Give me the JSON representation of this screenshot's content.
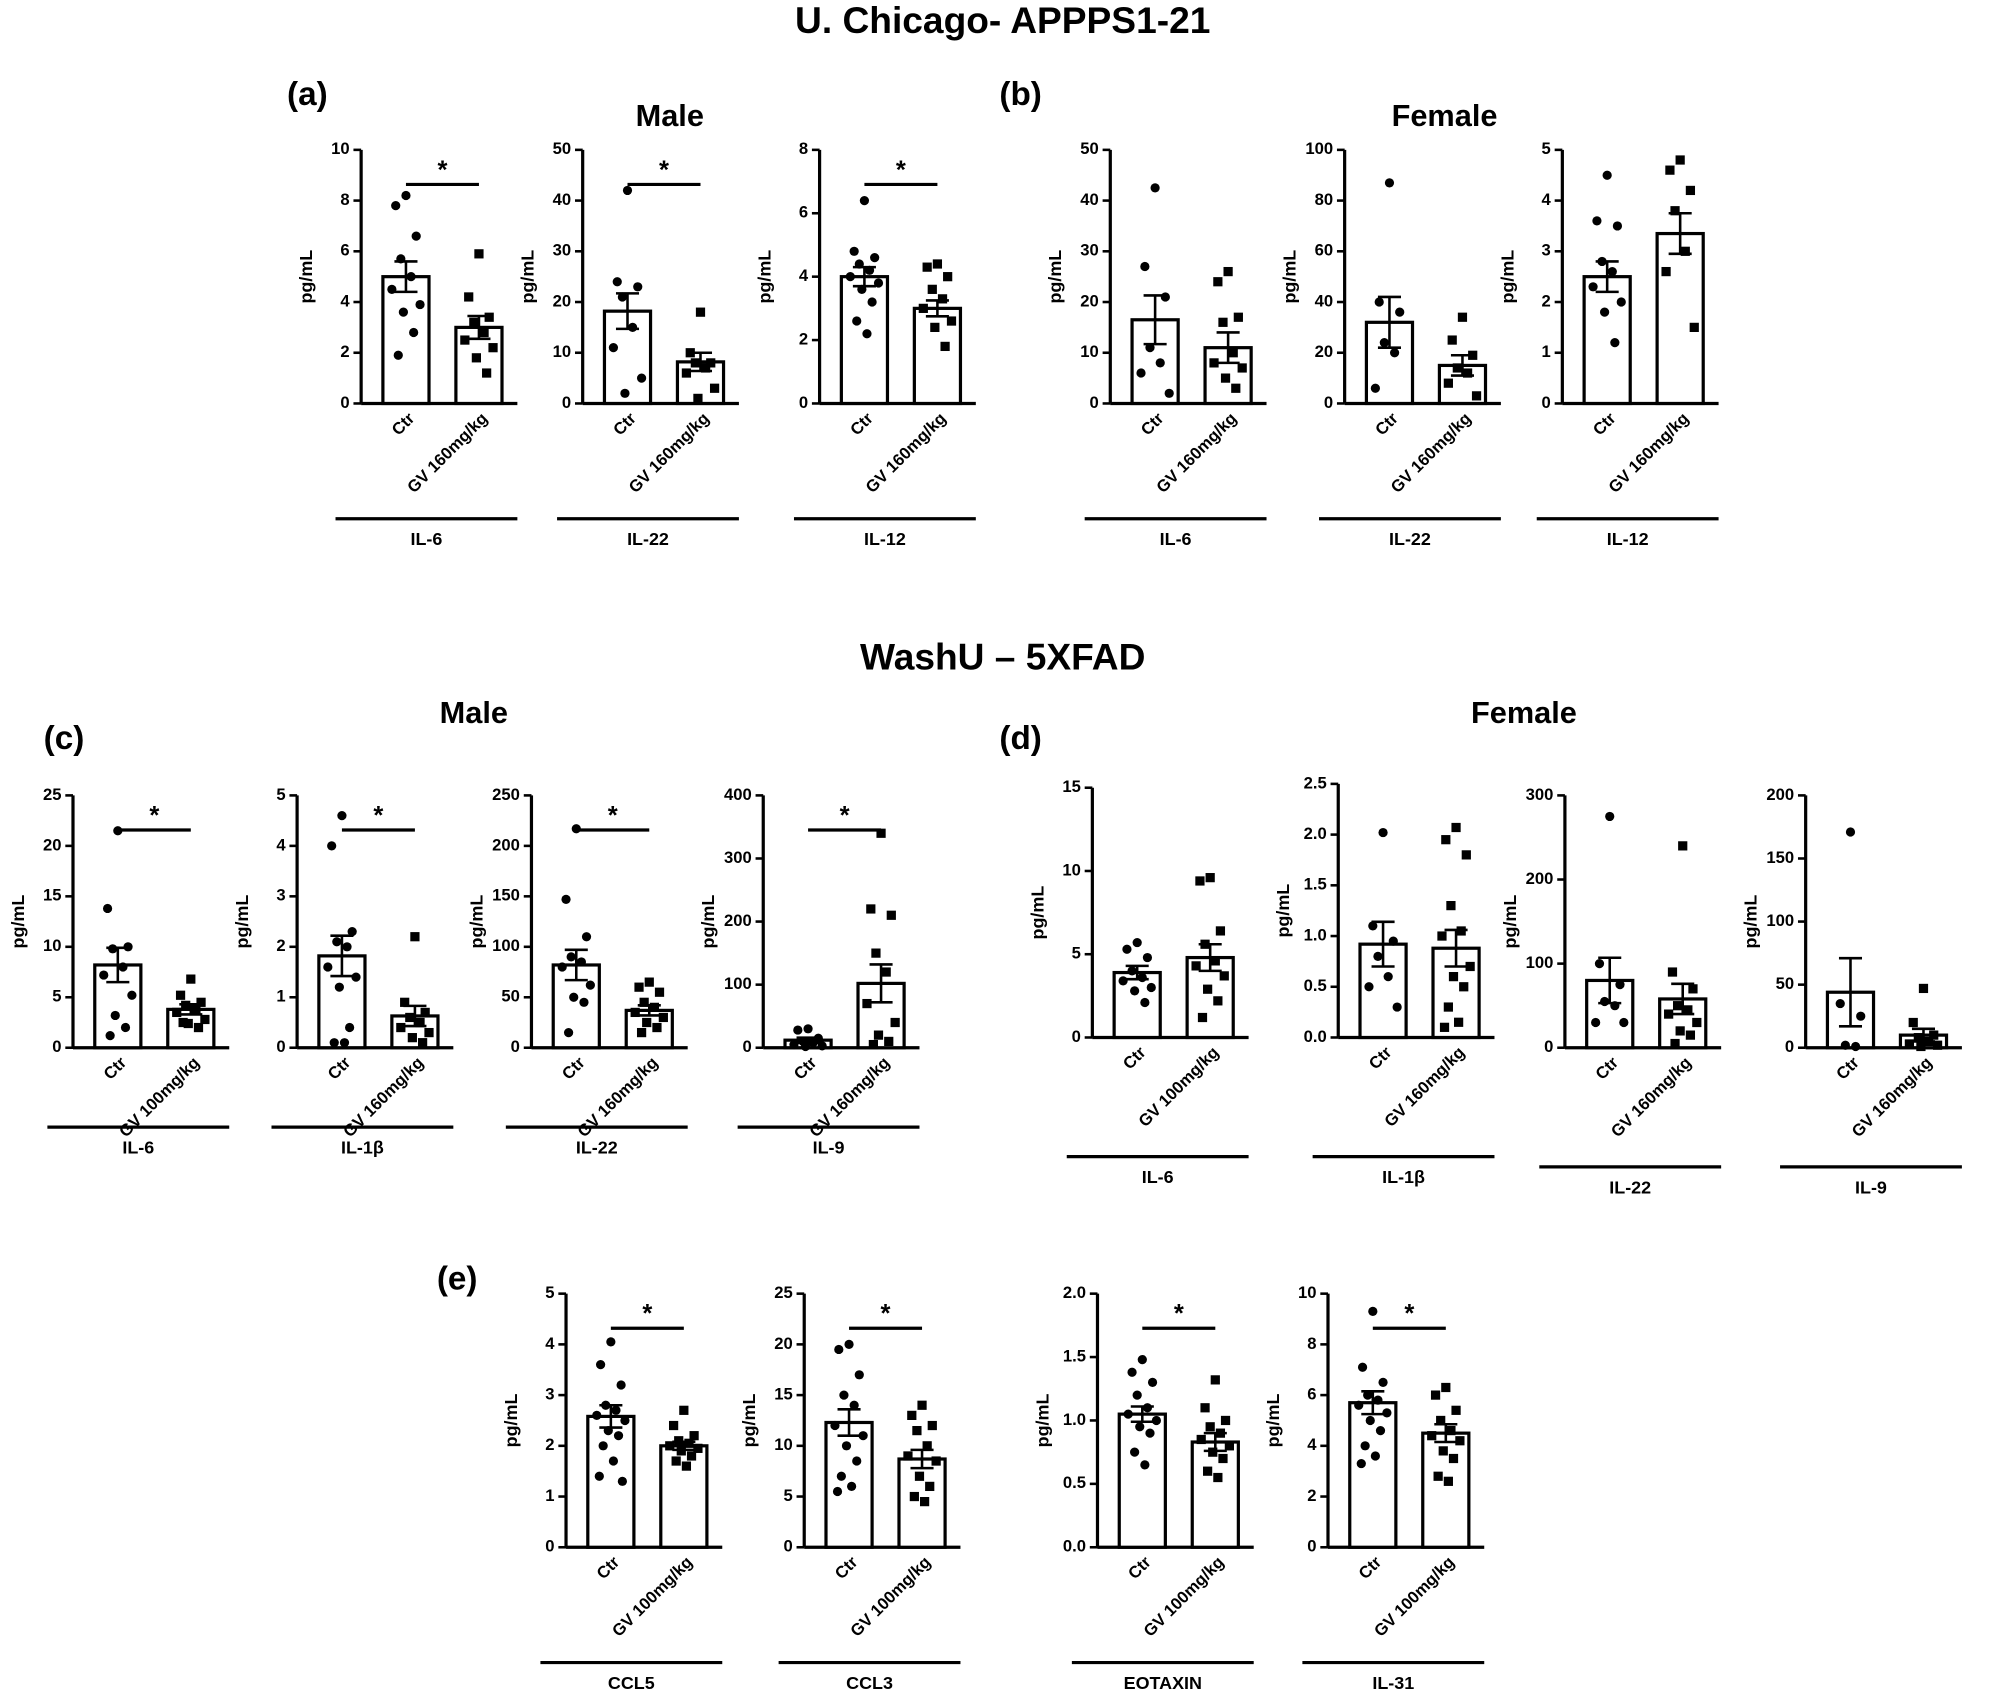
{
  "figure": {
    "titles": [
      "U. Chicago- APPPS1-21",
      "WashU – 5XFAD"
    ],
    "panels": [
      "(a)",
      "(b)",
      "(c)",
      "(d)",
      "(e)"
    ],
    "groups": [
      "Male",
      "Female",
      "Male",
      "Female"
    ]
  },
  "chart_data": [
    {
      "type": "bar",
      "categories": [
        "Ctr",
        "GV 160mg/kg"
      ],
      "values": [
        5.0,
        3.0
      ],
      "errors": [
        0.6,
        0.45
      ],
      "points": [
        [
          8.2,
          7.8,
          6.6,
          5.7,
          5.0,
          4.5,
          3.9,
          3.6,
          2.8,
          1.9
        ],
        [
          5.9,
          4.2,
          3.4,
          3.2,
          2.8,
          2.5,
          2.2,
          1.8,
          1.2
        ]
      ],
      "ylim": [
        0,
        10
      ],
      "yticks": [
        0,
        2,
        4,
        6,
        8,
        10
      ],
      "ylabel": "pg/mL",
      "xlabel": "IL-6",
      "significance": "*"
    },
    {
      "type": "bar",
      "categories": [
        "Ctr",
        "GV 160mg/kg"
      ],
      "values": [
        18.2,
        8.2
      ],
      "errors": [
        3.5,
        1.8
      ],
      "points": [
        [
          42,
          24,
          23,
          21,
          15,
          11,
          5,
          2
        ],
        [
          18,
          10,
          8,
          8,
          7,
          6,
          3,
          1
        ]
      ],
      "ylim": [
        0,
        50
      ],
      "yticks": [
        0,
        10,
        20,
        30,
        40,
        50
      ],
      "ylabel": "pg/mL",
      "xlabel": "IL-22",
      "significance": "*"
    },
    {
      "type": "bar",
      "categories": [
        "Ctr",
        "GV 160mg/kg"
      ],
      "values": [
        4.0,
        3.0
      ],
      "errors": [
        0.3,
        0.25
      ],
      "points": [
        [
          6.4,
          4.8,
          4.6,
          4.4,
          4.2,
          4.0,
          3.8,
          3.6,
          3.2,
          2.6,
          2.2
        ],
        [
          4.4,
          4.3,
          4.0,
          3.6,
          3.3,
          3.0,
          2.6,
          2.4,
          1.8
        ]
      ],
      "ylim": [
        0,
        8
      ],
      "yticks": [
        0,
        2,
        4,
        6,
        8
      ],
      "ylabel": "pg/mL",
      "xlabel": "IL-12",
      "significance": "*"
    },
    {
      "type": "bar",
      "categories": [
        "Ctr",
        "GV 160mg/kg"
      ],
      "values": [
        16.5,
        11
      ],
      "errors": [
        4.8,
        3
      ],
      "points": [
        [
          42.5,
          27,
          21,
          11,
          8,
          6,
          2
        ],
        [
          26,
          24,
          17,
          16,
          10,
          8,
          7,
          5,
          3
        ]
      ],
      "ylim": [
        0,
        50
      ],
      "yticks": [
        0,
        10,
        20,
        30,
        40,
        50
      ],
      "ylabel": "pg/mL",
      "xlabel": "IL-6"
    },
    {
      "type": "bar",
      "categories": [
        "Ctr",
        "GV 160mg/kg"
      ],
      "values": [
        32,
        15
      ],
      "errors": [
        10,
        4
      ],
      "points": [
        [
          87,
          40,
          36,
          24,
          20,
          6
        ],
        [
          34,
          25,
          19,
          14,
          12,
          8,
          3
        ]
      ],
      "ylim": [
        0,
        100
      ],
      "yticks": [
        0,
        20,
        40,
        60,
        80,
        100
      ],
      "ylabel": "pg/mL",
      "xlabel": "IL-22"
    },
    {
      "type": "bar",
      "categories": [
        "Ctr",
        "GV 160mg/kg"
      ],
      "values": [
        2.5,
        3.35
      ],
      "errors": [
        0.3,
        0.4
      ],
      "points": [
        [
          4.5,
          3.6,
          3.5,
          2.8,
          2.6,
          2.3,
          2.0,
          1.8,
          1.2
        ],
        [
          4.8,
          4.6,
          4.2,
          3.8,
          3.0,
          2.6,
          1.5
        ]
      ],
      "ylim": [
        0,
        5
      ],
      "yticks": [
        0,
        1,
        2,
        3,
        4,
        5
      ],
      "ylabel": "pg/mL",
      "xlabel": "IL-12"
    },
    {
      "type": "bar",
      "categories": [
        "Ctr",
        "GV 100mg/kg"
      ],
      "values": [
        8.2,
        3.8
      ],
      "errors": [
        1.7,
        0.5
      ],
      "points": [
        [
          21.5,
          13.8,
          10,
          9.8,
          8,
          7.2,
          5.2,
          3.2,
          2,
          1.2
        ],
        [
          6.8,
          5.2,
          4.5,
          4.2,
          3.8,
          3.5,
          2.8,
          2.4,
          2.0,
          2.5
        ]
      ],
      "ylim": [
        0,
        25
      ],
      "yticks": [
        0,
        5,
        10,
        15,
        20,
        25
      ],
      "ylabel": "pg/mL",
      "xlabel": "IL-6",
      "significance": "*"
    },
    {
      "type": "bar",
      "categories": [
        "Ctr",
        "GV 160mg/kg"
      ],
      "values": [
        1.82,
        0.63
      ],
      "errors": [
        0.4,
        0.2
      ],
      "points": [
        [
          4.6,
          4.0,
          2.3,
          2.1,
          2.0,
          1.6,
          1.4,
          1.2,
          0.4,
          0.1,
          0.1
        ],
        [
          2.2,
          0.9,
          0.7,
          0.6,
          0.5,
          0.4,
          0.3,
          0.2,
          0.1
        ]
      ],
      "ylim": [
        0,
        5
      ],
      "yticks": [
        0,
        1,
        2,
        3,
        4,
        5
      ],
      "ylabel": "pg/mL",
      "xlabel": "IL-1β",
      "significance": "*"
    },
    {
      "type": "bar",
      "categories": [
        "Ctr",
        "GV 160mg/kg"
      ],
      "values": [
        82,
        37
      ],
      "errors": [
        15,
        5
      ],
      "points": [
        [
          217,
          147,
          110,
          90,
          85,
          80,
          62,
          50,
          45,
          15
        ],
        [
          65,
          60,
          55,
          45,
          40,
          35,
          30,
          25,
          20,
          15
        ]
      ],
      "ylim": [
        0,
        250
      ],
      "yticks": [
        0,
        50,
        100,
        150,
        200,
        250
      ],
      "ylabel": "pg/mL",
      "xlabel": "IL-22",
      "significance": "*"
    },
    {
      "type": "bar",
      "categories": [
        "Ctr",
        "GV 160mg/kg"
      ],
      "values": [
        12,
        102
      ],
      "errors": [
        4,
        30
      ],
      "points": [
        [
          30,
          28,
          15,
          10,
          8,
          5,
          3,
          2
        ],
        [
          340,
          220,
          210,
          150,
          120,
          70,
          40,
          20,
          10,
          5
        ]
      ],
      "ylim": [
        0,
        400
      ],
      "yticks": [
        0,
        100,
        200,
        300,
        400
      ],
      "ylabel": "pg/mL",
      "xlabel": "IL-9",
      "significance": "*"
    },
    {
      "type": "bar",
      "categories": [
        "Ctr",
        "GV 100mg/kg"
      ],
      "values": [
        3.9,
        4.8
      ],
      "errors": [
        0.4,
        0.8
      ],
      "points": [
        [
          5.7,
          5.3,
          4.8,
          4.0,
          3.6,
          3.4,
          3.0,
          2.8,
          2.1
        ],
        [
          9.6,
          9.4,
          6.4,
          5.6,
          4.6,
          4.3,
          3.7,
          2.9,
          2.2,
          1.2
        ]
      ],
      "ylim": [
        0,
        15
      ],
      "yticks": [
        0,
        5,
        10,
        15
      ],
      "ylabel": "pg/mL",
      "xlabel": "IL-6"
    },
    {
      "type": "bar",
      "categories": [
        "Ctr",
        "GV 160mg/kg"
      ],
      "values": [
        0.92,
        0.88
      ],
      "errors": [
        0.22,
        0.18
      ],
      "points": [
        [
          2.02,
          1.1,
          0.95,
          0.8,
          0.6,
          0.5,
          0.3
        ],
        [
          2.07,
          1.95,
          1.8,
          1.3,
          1.05,
          1.0,
          0.7,
          0.6,
          0.5,
          0.3,
          0.15,
          0.1
        ]
      ],
      "ylim": [
        0,
        2.5
      ],
      "yticks": [
        {
          "value": 0,
          "label": "0.0"
        },
        {
          "value": 0.5,
          "label": "0.5"
        },
        {
          "value": 1,
          "label": "1.0"
        },
        {
          "value": 1.5,
          "label": "1.5"
        },
        {
          "value": 2,
          "label": "2.0"
        },
        {
          "value": 2.5,
          "label": "2.5"
        }
      ],
      "ylabel": "pg/mL",
      "xlabel": "IL-1β"
    },
    {
      "type": "bar",
      "categories": [
        "Ctr",
        "GV 160mg/kg"
      ],
      "values": [
        80,
        58
      ],
      "errors": [
        27,
        18
      ],
      "points": [
        [
          275,
          100,
          75,
          55,
          50,
          30,
          30
        ],
        [
          240,
          90,
          70,
          50,
          45,
          40,
          30,
          20,
          15,
          5
        ]
      ],
      "ylim": [
        0,
        300
      ],
      "yticks": [
        0,
        100,
        200,
        300
      ],
      "ylabel": "pg/mL",
      "xlabel": "IL-22"
    },
    {
      "type": "bar",
      "categories": [
        "Ctr",
        "GV 160mg/kg"
      ],
      "values": [
        44,
        10
      ],
      "errors": [
        27,
        5
      ],
      "points": [
        [
          171,
          35,
          25,
          2,
          1
        ],
        [
          47,
          20,
          10,
          8,
          5,
          3,
          2,
          1
        ]
      ],
      "ylim": [
        0,
        200
      ],
      "yticks": [
        0,
        50,
        100,
        150,
        200
      ],
      "ylabel": "pg/mL",
      "xlabel": "IL-9"
    },
    {
      "type": "bar",
      "categories": [
        "Ctr",
        "GV 100mg/kg"
      ],
      "values": [
        2.58,
        2.0
      ],
      "errors": [
        0.22,
        0.08
      ],
      "points": [
        [
          4.05,
          3.6,
          3.2,
          2.8,
          2.7,
          2.6,
          2.5,
          2.3,
          2.2,
          2.0,
          1.7,
          1.4,
          1.3
        ],
        [
          2.7,
          2.4,
          2.2,
          2.1,
          2.05,
          2.0,
          1.95,
          1.9,
          1.8,
          1.7,
          1.6
        ]
      ],
      "ylim": [
        0,
        5
      ],
      "yticks": [
        0,
        1,
        2,
        3,
        4,
        5
      ],
      "ylabel": "pg/mL",
      "xlabel": "CCL5",
      "significance": "*"
    },
    {
      "type": "bar",
      "categories": [
        "Ctr",
        "GV 100mg/kg"
      ],
      "values": [
        12.3,
        8.7
      ],
      "errors": [
        1.3,
        0.9
      ],
      "points": [
        [
          20,
          19.5,
          17,
          15,
          14,
          12,
          11,
          10,
          8.5,
          7,
          6,
          5.5
        ],
        [
          14,
          13,
          12,
          11.5,
          10,
          9,
          8.5,
          7,
          6,
          5,
          4.5
        ]
      ],
      "ylim": [
        0,
        25
      ],
      "yticks": [
        0,
        5,
        10,
        15,
        20,
        25
      ],
      "ylabel": "pg/mL",
      "xlabel": "CCL3",
      "significance": "*"
    },
    {
      "type": "bar",
      "categories": [
        "Ctr",
        "GV 100mg/kg"
      ],
      "values": [
        1.05,
        0.83
      ],
      "errors": [
        0.06,
        0.07
      ],
      "points": [
        [
          1.48,
          1.38,
          1.3,
          1.2,
          1.1,
          1.05,
          1.0,
          0.95,
          0.9,
          0.75,
          0.65
        ],
        [
          1.32,
          1.1,
          1.0,
          0.95,
          0.9,
          0.85,
          0.8,
          0.75,
          0.7,
          0.6,
          0.55
        ]
      ],
      "ylim": [
        0,
        2
      ],
      "yticks": [
        {
          "value": 0,
          "label": "0.0"
        },
        {
          "value": 0.5,
          "label": "0.5"
        },
        {
          "value": 1,
          "label": "1.0"
        },
        {
          "value": 1.5,
          "label": "1.5"
        },
        {
          "value": 2,
          "label": "2.0"
        }
      ],
      "ylabel": "pg/mL",
      "xlabel": "EOTAXIN",
      "significance": "*"
    },
    {
      "type": "bar",
      "categories": [
        "Ctr",
        "GV 100mg/kg"
      ],
      "values": [
        5.7,
        4.5
      ],
      "errors": [
        0.45,
        0.35
      ],
      "points": [
        [
          9.3,
          7.1,
          6.5,
          6.0,
          5.8,
          5.6,
          5.3,
          5.0,
          4.6,
          4.0,
          3.6,
          3.3
        ],
        [
          6.3,
          6.0,
          5.4,
          5.0,
          4.6,
          4.4,
          4.2,
          3.8,
          3.5,
          2.8,
          2.6
        ]
      ],
      "ylim": [
        0,
        10
      ],
      "yticks": [
        0,
        2,
        4,
        6,
        8,
        10
      ],
      "ylabel": "pg/mL",
      "xlabel": "IL-31",
      "significance": "*"
    }
  ]
}
